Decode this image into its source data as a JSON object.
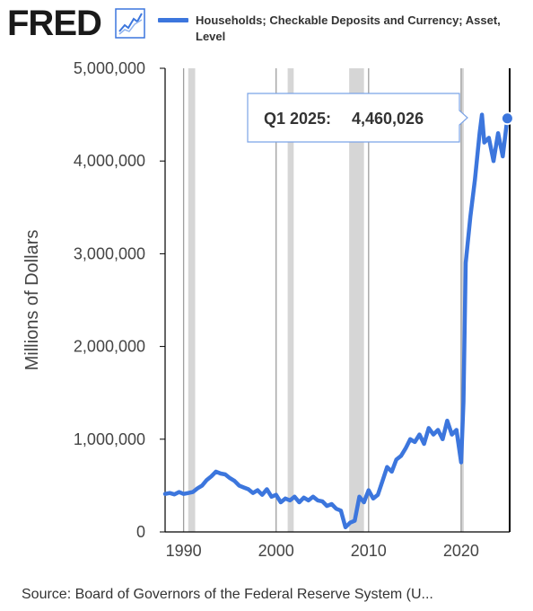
{
  "brand": {
    "logo_text": "FRED",
    "logo_icon": "line-chart-icon"
  },
  "legend": {
    "series_label": "Households; Checkable Deposits and Currency; Asset, Level",
    "color": "#3c76dd"
  },
  "tooltip": {
    "period": "Q1 2025:",
    "value": "4,460,026"
  },
  "source": {
    "text": "Source: Board of Governors of the Federal Reserve System (U..."
  },
  "colors": {
    "line": "#3c76dd",
    "recession": "#d6d6d6",
    "grid": "#9e9e9e",
    "axis": "#000000"
  },
  "chart_data": {
    "type": "line",
    "title": "",
    "xlabel": "",
    "ylabel": "Millions of Dollars",
    "xlim": [
      1988.0,
      2025.25
    ],
    "ylim": [
      0,
      5000000
    ],
    "yticks": [
      0,
      1000000,
      2000000,
      3000000,
      4000000,
      5000000
    ],
    "ytick_labels": [
      "0",
      "1,000,000",
      "2,000,000",
      "3,000,000",
      "4,000,000",
      "5,000,000"
    ],
    "xticks": [
      1990,
      2000,
      2010,
      2020
    ],
    "xtick_labels": [
      "1990",
      "2000",
      "2010",
      "2020"
    ],
    "grid": "vertical lines at x ticks",
    "legend_position": "top",
    "recession_bands": [
      [
        1990.5,
        1991.25
      ],
      [
        2001.25,
        2001.9
      ],
      [
        2007.9,
        2009.5
      ],
      [
        2020.0,
        2020.25
      ]
    ],
    "series": [
      {
        "name": "Households; Checkable Deposits and Currency; Asset, Level",
        "x": [
          1988.0,
          1988.5,
          1989.0,
          1989.5,
          1990.0,
          1990.5,
          1991.0,
          1991.5,
          1992.0,
          1992.5,
          1993.0,
          1993.5,
          1994.0,
          1994.5,
          1995.0,
          1995.5,
          1996.0,
          1996.5,
          1997.0,
          1997.5,
          1998.0,
          1998.5,
          1999.0,
          1999.5,
          2000.0,
          2000.5,
          2001.0,
          2001.5,
          2002.0,
          2002.5,
          2003.0,
          2003.5,
          2004.0,
          2004.5,
          2005.0,
          2005.5,
          2006.0,
          2006.5,
          2007.0,
          2007.5,
          2008.0,
          2008.5,
          2009.0,
          2009.5,
          2010.0,
          2010.5,
          2011.0,
          2011.5,
          2012.0,
          2012.5,
          2013.0,
          2013.5,
          2014.0,
          2014.5,
          2015.0,
          2015.5,
          2016.0,
          2016.5,
          2017.0,
          2017.5,
          2018.0,
          2018.5,
          2019.0,
          2019.5,
          2020.0,
          2020.25,
          2020.5,
          2021.0,
          2021.5,
          2022.0,
          2022.25,
          2022.5,
          2023.0,
          2023.5,
          2024.0,
          2024.5,
          2025.0
        ],
        "values": [
          410000,
          420000,
          405000,
          430000,
          410000,
          420000,
          430000,
          470000,
          500000,
          560000,
          600000,
          650000,
          630000,
          620000,
          580000,
          550000,
          500000,
          480000,
          460000,
          420000,
          450000,
          400000,
          460000,
          380000,
          400000,
          320000,
          360000,
          340000,
          380000,
          320000,
          370000,
          340000,
          380000,
          340000,
          330000,
          280000,
          300000,
          250000,
          230000,
          50000,
          100000,
          120000,
          380000,
          320000,
          450000,
          360000,
          400000,
          550000,
          700000,
          650000,
          780000,
          820000,
          900000,
          1000000,
          970000,
          1050000,
          950000,
          1120000,
          1050000,
          1100000,
          1000000,
          1200000,
          1050000,
          1100000,
          750000,
          1400000,
          2900000,
          3400000,
          3800000,
          4300000,
          4500000,
          4200000,
          4250000,
          4000000,
          4300000,
          4050000,
          4460026
        ]
      }
    ]
  }
}
